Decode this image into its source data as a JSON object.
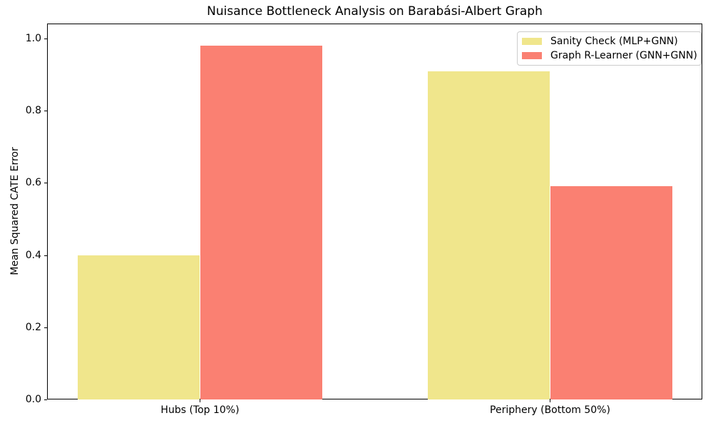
{
  "chart_data": {
    "type": "bar",
    "title": "Nuisance Bottleneck Analysis on Barabási-Albert Graph",
    "xlabel": "",
    "ylabel": "Mean Squared CATE Error",
    "categories": [
      "Hubs (Top 10%)",
      "Periphery (Bottom 50%)"
    ],
    "series": [
      {
        "name": "Sanity Check (MLP+GNN)",
        "color": "#F0E68C",
        "values": [
          0.4,
          0.91
        ]
      },
      {
        "name": "Graph R-Learner (GNN+GNN)",
        "color": "#FA8072",
        "values": [
          0.98,
          0.59
        ]
      }
    ],
    "ylim": [
      0.0,
      1.04
    ],
    "yticks": [
      0.0,
      0.2,
      0.4,
      0.6,
      0.8,
      1.0
    ],
    "ytick_labels": [
      "0.0",
      "0.2",
      "0.4",
      "0.6",
      "0.8",
      "1.0"
    ],
    "grid": false,
    "legend_position": "upper right",
    "background_color": "#ffffff",
    "spine_color": "#000000"
  }
}
